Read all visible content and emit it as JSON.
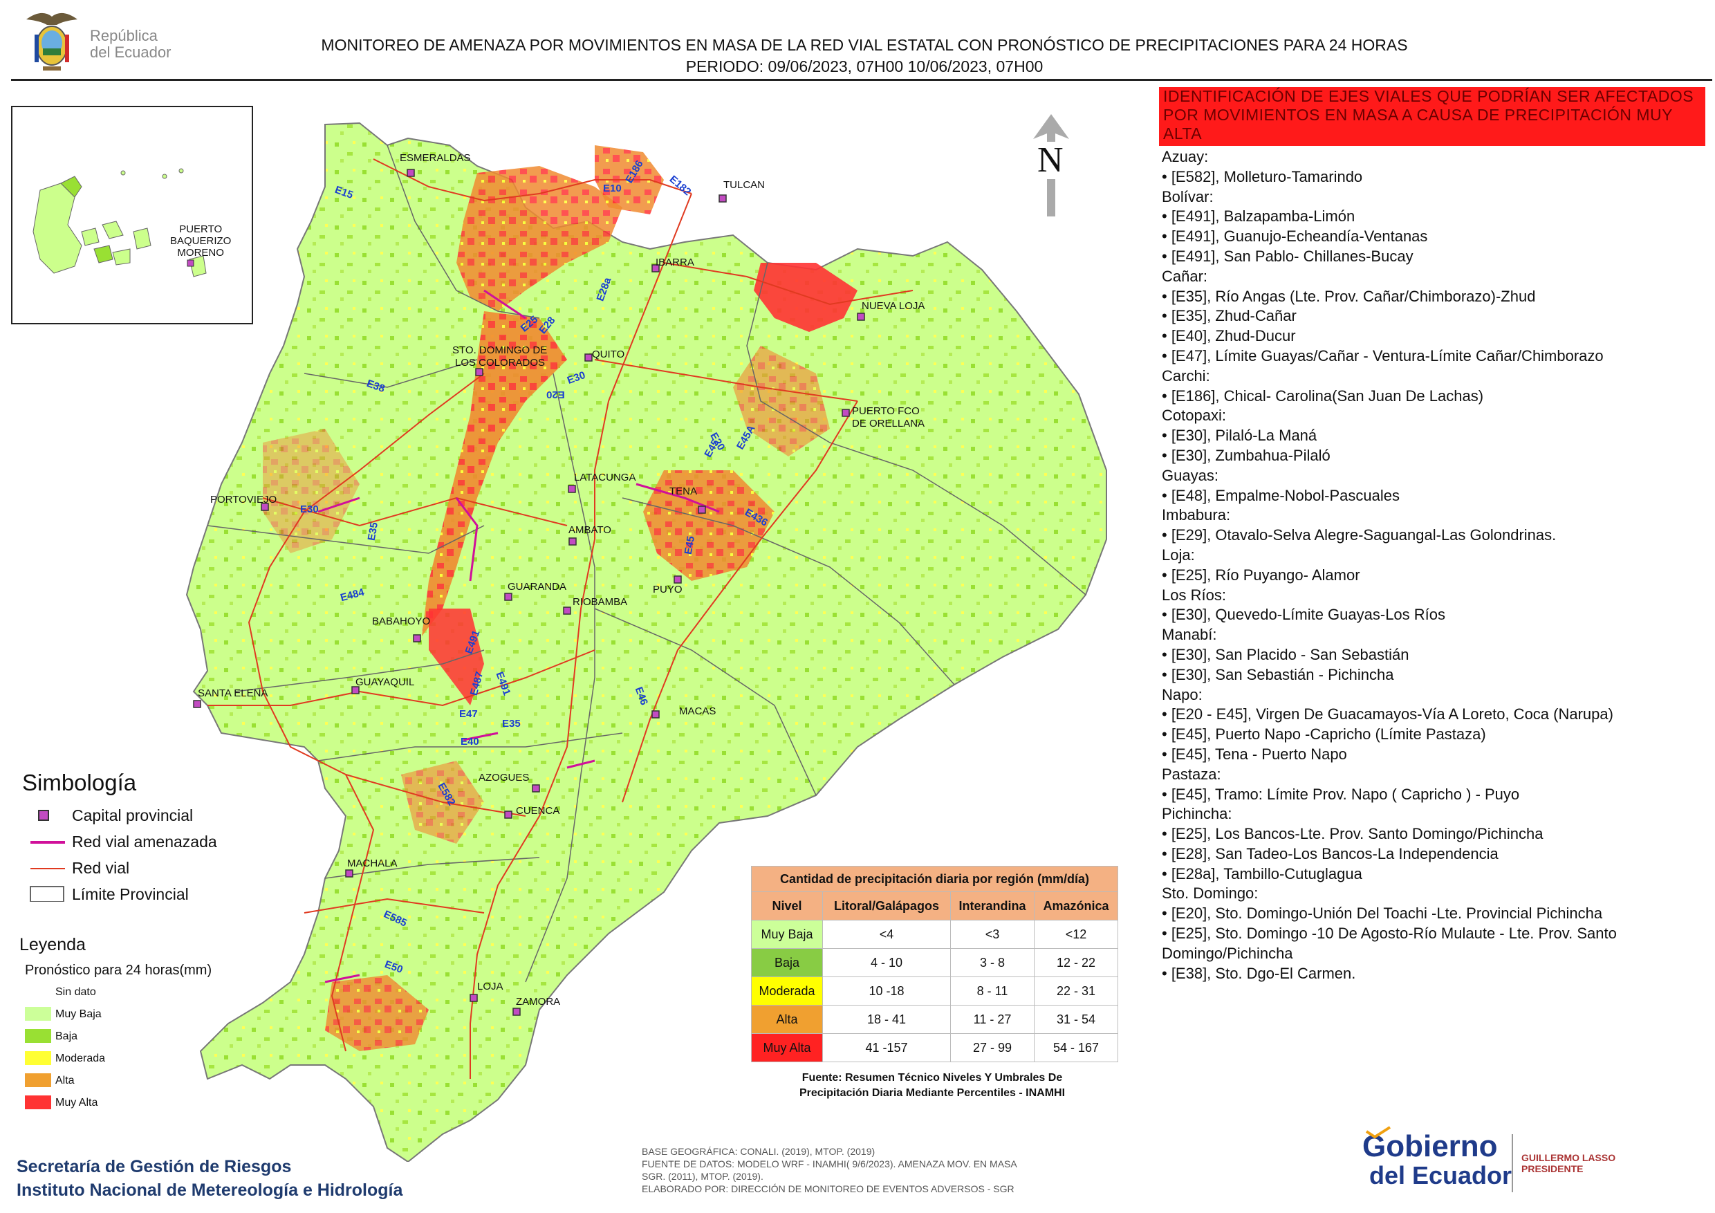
{
  "header": {
    "logo_text_line1": "República",
    "logo_text_line2": "del Ecuador",
    "title_line1": "MONITOREO DE AMENAZA POR MOVIMIENTOS EN MASA DE LA RED VIAL  ESTATAL  CON PRONÓSTICO  DE  PRECIPITACIONES PARA 24 HORAS",
    "title_line2": "PERIODO: 09/06/2023, 07H00 10/06/2023, 07H00"
  },
  "map": {
    "north_label": "N",
    "inset_city_line1": "PUERTO",
    "inset_city_line2": "BAQUERIZO",
    "inset_city_line3": "MORENO",
    "cities": [
      {
        "name": "ESMERALDAS"
      },
      {
        "name": "TULCAN"
      },
      {
        "name": "IBARRA"
      },
      {
        "name": "NUEVA LOJA"
      },
      {
        "name": "STO. DOMINGO DE"
      },
      {
        "name": "LOS COLORADOS"
      },
      {
        "name": "QUITO"
      },
      {
        "name": "PUERTO FCO"
      },
      {
        "name": "DE ORELLANA"
      },
      {
        "name": "PORTOVIEJO"
      },
      {
        "name": "LATACUNGA"
      },
      {
        "name": "TENA"
      },
      {
        "name": "AMBATO"
      },
      {
        "name": "GUARANDA"
      },
      {
        "name": "RIOBAMBA"
      },
      {
        "name": "PUYO"
      },
      {
        "name": "BABAHOYO"
      },
      {
        "name": "SANTA ELENA"
      },
      {
        "name": "GUAYAQUIL"
      },
      {
        "name": "MACAS"
      },
      {
        "name": "AZOGUES"
      },
      {
        "name": "CUENCA"
      },
      {
        "name": "MACHALA"
      },
      {
        "name": "LOJA"
      },
      {
        "name": "ZAMORA"
      }
    ],
    "road_labels": [
      "E15",
      "E186",
      "E182",
      "E10",
      "E25",
      "E28",
      "E28a",
      "E38",
      "E20",
      "E30",
      "E20",
      "E45",
      "E45A",
      "E30",
      "E35",
      "E436",
      "E45",
      "E484",
      "E491",
      "E491",
      "E487",
      "E47",
      "E35",
      "E40",
      "E46",
      "E582",
      "E585",
      "E50"
    ]
  },
  "panel": {
    "header": "IDENTIFICACIÓN DE EJES VIALES QUE PODRÍAN SER AFECTADOS POR MOVIMIENTOS EN MASA A CAUSA DE PRECIPITACIÓN MUY ALTA",
    "groups": [
      {
        "province": "Azuay:",
        "roads": [
          "• [E582], Molleturo-Tamarindo"
        ]
      },
      {
        "province": "Bolívar:",
        "roads": [
          "• [E491], Balzapamba-Limón",
          "• [E491], Guanujo-Echeandía-Ventanas",
          "• [E491], San Pablo- Chillanes-Bucay"
        ]
      },
      {
        "province": "Cañar:",
        "roads": [
          "• [E35], Río Angas (Lte. Prov. Cañar/Chimborazo)-Zhud",
          "• [E35], Zhud-Cañar",
          "• [E40], Zhud-Ducur",
          "• [E47], Límite Guayas/Cañar - Ventura-Límite Cañar/Chimborazo"
        ]
      },
      {
        "province": "Carchi:",
        "roads": [
          "• [E186], Chical- Carolina(San Juan De Lachas)"
        ]
      },
      {
        "province": "Cotopaxi:",
        "roads": [
          "• [E30], Pilaló-La Maná",
          "• [E30], Zumbahua-Pilaló"
        ]
      },
      {
        "province": "Guayas:",
        "roads": [
          "• [E48], Empalme-Nobol-Pascuales"
        ]
      },
      {
        "province": "Imbabura:",
        "roads": [
          "• [E29], Otavalo-Selva Alegre-Saguangal-Las Golondrinas."
        ]
      },
      {
        "province": "Loja:",
        "roads": [
          "• [E25], Río Puyango- Alamor"
        ]
      },
      {
        "province": "Los Ríos:",
        "roads": [
          "• [E30], Quevedo-Límite Guayas-Los Ríos"
        ]
      },
      {
        "province": "Manabí:",
        "roads": [
          "• [E30], San Placido - San Sebastián",
          "• [E30], San Sebastián - Pichincha"
        ]
      },
      {
        "province": "Napo:",
        "roads": [
          "• [E20 - E45], Virgen De Guacamayos-Vía A Loreto, Coca (Narupa)",
          "• [E45], Puerto Napo -Capricho (Límite Pastaza)",
          "• [E45], Tena - Puerto Napo"
        ]
      },
      {
        "province": "Pastaza:",
        "roads": [
          "• [E45], Tramo: Límite Prov. Napo ( Capricho ) - Puyo"
        ]
      },
      {
        "province": "Pichincha:",
        "roads": [
          "• [E25], Los Bancos-Lte. Prov. Santo Domingo/Pichincha",
          "• [E28], San Tadeo-Los Bancos-La Independencia",
          "• [E28a], Tambillo-Cutuglagua"
        ]
      },
      {
        "province": "Sto. Domingo:",
        "roads": [
          "• [E20], Sto. Domingo-Unión Del Toachi -Lte. Provincial Pichincha",
          "• [E25], Sto. Domingo -10 De Agosto-Río Mulaute - Lte. Prov. Santo Domingo/Pichincha",
          "• [E38], Sto. Dgo-El Carmen."
        ]
      }
    ]
  },
  "symbology": {
    "title": "Simbología",
    "items": [
      "Capital provincial",
      "Red vial amenazada",
      "Red vial",
      "Límite Provincial"
    ]
  },
  "legend": {
    "title": "Leyenda",
    "subtitle": "Pronóstico para 24 horas(mm)",
    "items": [
      {
        "label": "Sin dato",
        "color": "#ffffff"
      },
      {
        "label": "Muy Baja",
        "color": "#ccff99"
      },
      {
        "label": "Baja",
        "color": "#99e033"
      },
      {
        "label": "Moderada",
        "color": "#ffff33"
      },
      {
        "label": "Alta",
        "color": "#f0a030"
      },
      {
        "label": "Muy Alta",
        "color": "#ff3333"
      }
    ]
  },
  "table": {
    "caption": "Cantidad de precipitación diaria por región (mm/día)",
    "headers": [
      "Nivel",
      "Litoral/Galápagos",
      "Interandina",
      "Amazónica"
    ],
    "rows": [
      {
        "level": "Muy Baja",
        "color": "#ccff99",
        "litoral": "<4",
        "interandina": "<3",
        "amazonica": "<12"
      },
      {
        "level": "Baja",
        "color": "#88cc44",
        "litoral": "4 - 10",
        "interandina": "3 - 8",
        "amazonica": "12 - 22"
      },
      {
        "level": "Moderada",
        "color": "#ffff00",
        "litoral": "10 -18",
        "interandina": "8 - 11",
        "amazonica": "22 - 31"
      },
      {
        "level": "Alta",
        "color": "#f0a030",
        "litoral": "18 - 41",
        "interandina": "11 - 27",
        "amazonica": "31 - 54"
      },
      {
        "level": "Muy Alta",
        "color": "#ff2222",
        "litoral": "41 -157",
        "interandina": "27 - 99",
        "amazonica": "54 - 167"
      }
    ],
    "source_line1": "Fuente: Resumen Técnico Niveles Y Umbrales De",
    "source_line2": "Precipitación Diaria Mediante Percentiles - INAMHI"
  },
  "footer": {
    "left_line1": "Secretaría de Gestión de Riesgos",
    "left_line2": "Instituto Nacional de Metereología e Hidrología",
    "mid_line1": "BASE GEOGRÁFICA: CONALI. (2019), MTOP. (2019)",
    "mid_line2": "FUENTE DE DATOS: MODELO WRF - INAMHI( 9/6/2023).  AMENAZA MOV. EN MASA",
    "mid_line3": "SGR. (2011), MTOP. (2019).",
    "mid_line4": "ELABORADO POR: DIRECCIÓN DE MONITOREO DE EVENTOS ADVERSOS - SGR",
    "gob_line1": "Gobierno",
    "gob_line2": "del Ecuador",
    "president_line1": "GUILLERMO LASSO",
    "president_line2": "PRESIDENTE"
  }
}
